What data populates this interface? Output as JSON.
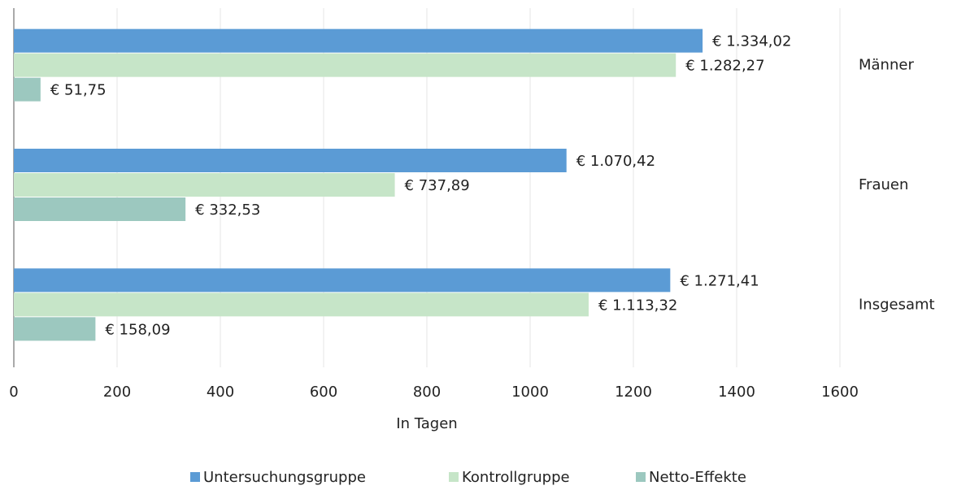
{
  "chart_data": {
    "type": "bar",
    "orientation": "horizontal",
    "categories": [
      "Männer",
      "Frauen",
      "Insgesamt"
    ],
    "x_label": "In Tagen",
    "xlim": [
      0,
      1600
    ],
    "xticks": [
      0,
      200,
      400,
      600,
      800,
      1000,
      1200,
      1400,
      1600
    ],
    "grid": true,
    "legend": "bottom",
    "series": [
      {
        "name": "Untersuchungsgruppe",
        "color": "#5b9bd5",
        "values": [
          1334.02,
          1070.42,
          1271.41
        ],
        "value_labels": [
          "€ 1.334,02",
          "€ 1.070,42",
          "€ 1.271,41"
        ]
      },
      {
        "name": "Kontrollgruppe",
        "color": "#c6e5c8",
        "values": [
          1282.27,
          737.89,
          1113.32
        ],
        "value_labels": [
          "€ 1.282,27",
          "€ 737,89",
          "€ 1.113,32"
        ]
      },
      {
        "name": "Netto-Effekte",
        "color": "#9cc8bf",
        "values": [
          51.75,
          332.53,
          158.09
        ],
        "value_labels": [
          "€ 51,75",
          "€ 332,53",
          "€ 158,09"
        ]
      }
    ]
  }
}
